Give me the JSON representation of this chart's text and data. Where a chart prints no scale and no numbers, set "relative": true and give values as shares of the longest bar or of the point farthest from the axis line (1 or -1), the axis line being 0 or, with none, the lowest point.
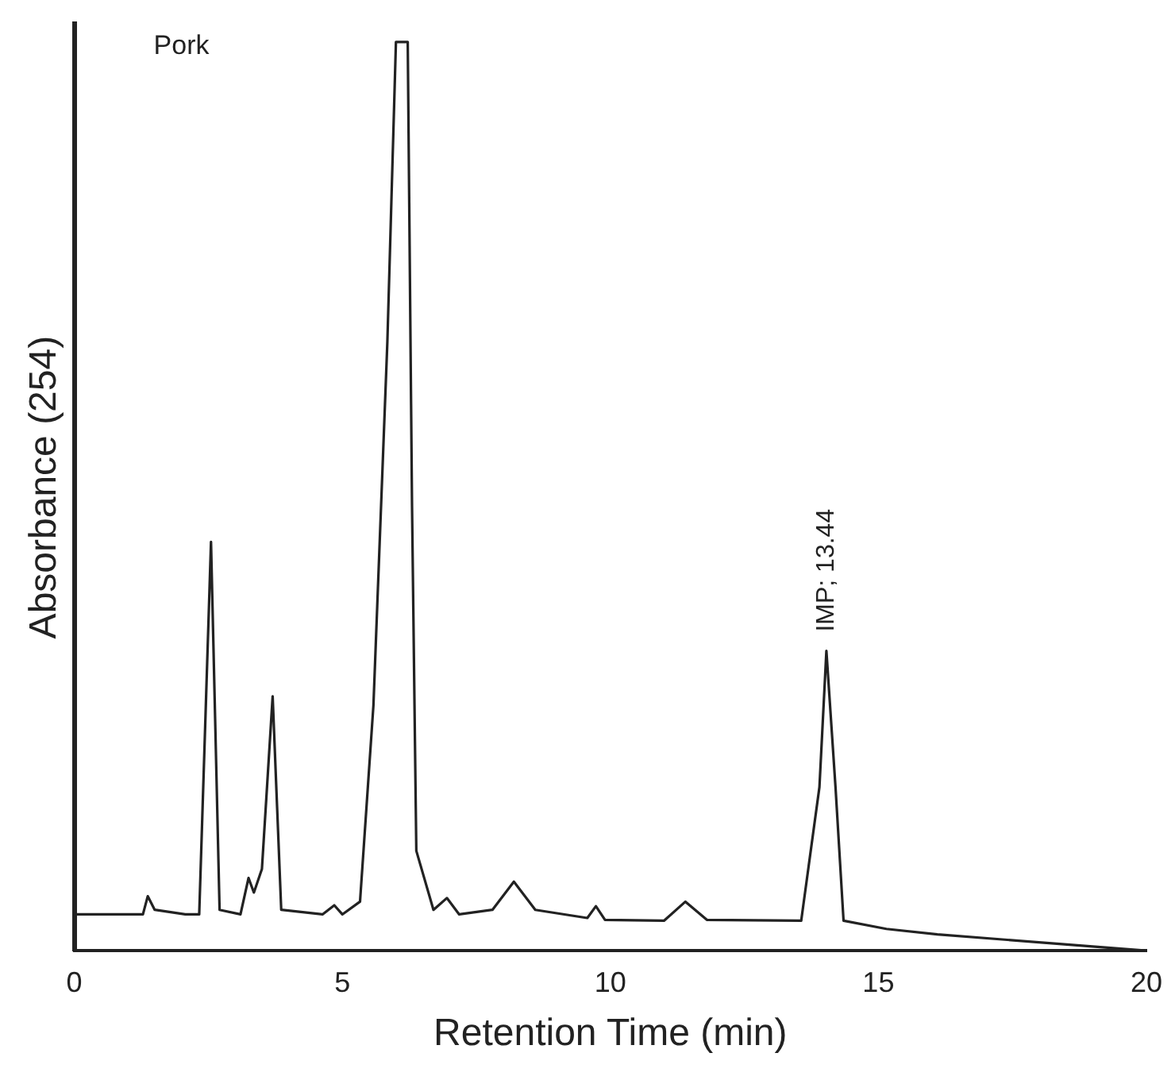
{
  "chart_data": {
    "type": "line",
    "relative": true,
    "xlabel": "Retention Time (min)",
    "ylabel": "Absorbance (254)",
    "xlim": [
      0,
      20
    ],
    "xticks": [
      0,
      5,
      10,
      15,
      20
    ],
    "grid": false,
    "legend": false,
    "marker": "none",
    "line_style": "solid",
    "annotations": [
      "Pork",
      {
        "text": "IMP; 13.44",
        "x": 14.03,
        "y": 0.33
      }
    ],
    "series": [
      {
        "color": "#222222",
        "x": [
          0,
          1.28,
          1.37,
          1.5,
          2.07,
          2.33,
          2.55,
          2.71,
          3.1,
          3.25,
          3.35,
          3.5,
          3.7,
          3.86,
          4.63,
          4.85,
          5.0,
          5.33,
          5.58,
          5.84,
          6.0,
          6.22,
          6.3,
          6.38,
          6.7,
          6.95,
          7.18,
          7.8,
          8.2,
          8.6,
          9.57,
          9.73,
          9.9,
          11.0,
          11.4,
          11.8,
          13.56,
          13.9,
          14.03,
          14.2,
          14.35,
          15.15,
          16.1,
          20
        ],
        "values": [
          0.04,
          0.04,
          0.06,
          0.045,
          0.04,
          0.04,
          0.45,
          0.045,
          0.04,
          0.08,
          0.064,
          0.09,
          0.28,
          0.045,
          0.04,
          0.05,
          0.04,
          0.054,
          0.27,
          0.67,
          1.0,
          1.0,
          0.49,
          0.11,
          0.045,
          0.058,
          0.04,
          0.045,
          0.076,
          0.045,
          0.036,
          0.049,
          0.034,
          0.033,
          0.054,
          0.034,
          0.033,
          0.18,
          0.33,
          0.18,
          0.033,
          0.024,
          0.018,
          0.0
        ]
      }
    ]
  }
}
